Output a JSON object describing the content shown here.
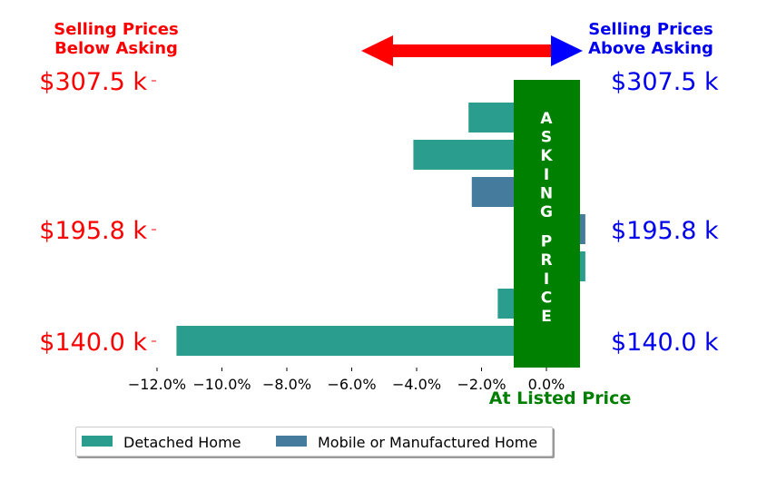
{
  "chart_data": {
    "type": "bar",
    "orientation": "horizontal",
    "header_left": "Selling Prices\nBelow Asking",
    "header_right": "Selling Prices\nAbove Asking",
    "center_label": "ASKING PRICE",
    "xlabel": "At Listed Price",
    "x_ticks": [
      "−12.0%",
      "−10.0%",
      "−8.0%",
      "−6.0%",
      "−4.0%",
      "−2.0%",
      "0.0%"
    ],
    "x_tick_values": [
      -12,
      -10,
      -8,
      -6,
      -4,
      -2,
      0
    ],
    "xlim": [
      -12.0,
      1.2
    ],
    "y_tick_labels": [
      "$307.5 k",
      "$195.8 k",
      "$140.0 k"
    ],
    "series": [
      {
        "name": "Detached Home",
        "color": "#2a9d8f"
      },
      {
        "name": "Mobile or Manufactured Home",
        "color": "#457b9d"
      }
    ],
    "bars": [
      {
        "series": "Detached Home",
        "value": -2.4
      },
      {
        "series": "Detached Home",
        "value": -4.1
      },
      {
        "series": "Mobile or Manufactured Home",
        "value": -2.3
      },
      {
        "series": "Mobile or Manufactured Home",
        "value": 1.2
      },
      {
        "series": "Detached Home",
        "value": 1.2
      },
      {
        "series": "Detached Home",
        "value": -1.5
      },
      {
        "series": "Detached Home",
        "value": -11.4
      }
    ],
    "colors": {
      "left_text": "#ff0000",
      "right_text": "#0000ee",
      "center": "#008000",
      "arrow_left": "#ff0000",
      "arrow_right": "#0000ff"
    }
  },
  "legend": {
    "items": [
      "Detached Home",
      "Mobile or Manufactured Home"
    ]
  }
}
